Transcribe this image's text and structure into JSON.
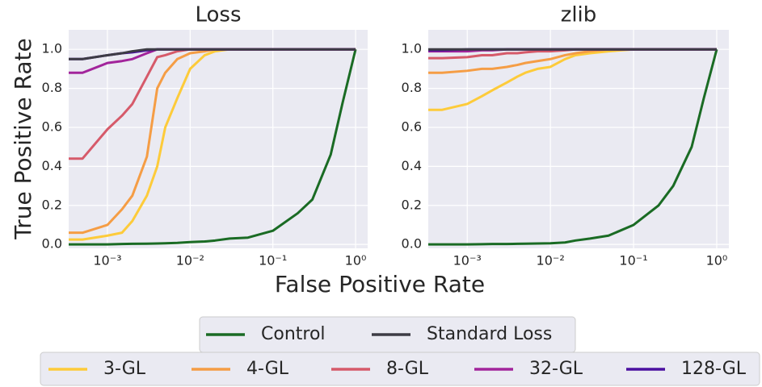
{
  "xlabel": "False Positive Rate",
  "ylabel": "True Positive Rate",
  "chart_data": [
    {
      "type": "line",
      "title": "Loss",
      "xscale": "log",
      "grid": true,
      "xlim": [
        0.00034,
        1.4
      ],
      "ylim": [
        -0.02,
        1.1
      ],
      "xticks": [
        {
          "value": 0.001,
          "label": "10⁻³"
        },
        {
          "value": 0.01,
          "label": "10⁻²"
        },
        {
          "value": 0.1,
          "label": "10⁻¹"
        },
        {
          "value": 1,
          "label": "10⁰"
        }
      ],
      "yticks": [
        {
          "value": 0,
          "label": "0.0"
        },
        {
          "value": 0.2,
          "label": "0.2"
        },
        {
          "value": 0.4,
          "label": "0.4"
        },
        {
          "value": 0.6,
          "label": "0.6"
        },
        {
          "value": 0.8,
          "label": "0.8"
        },
        {
          "value": 1,
          "label": "1.0"
        }
      ],
      "x": [
        0.00034,
        0.0005,
        0.001,
        0.0015,
        0.002,
        0.003,
        0.004,
        0.005,
        0.007,
        0.01,
        0.015,
        0.02,
        0.03,
        0.05,
        0.1,
        0.2,
        0.3,
        0.5,
        0.7,
        1.0
      ],
      "series": [
        {
          "name": "Control",
          "color": "#1a6b24",
          "values": [
            0,
            0,
            0,
            0.002,
            0.003,
            0.004,
            0.005,
            0.006,
            0.008,
            0.012,
            0.015,
            0.02,
            0.03,
            0.035,
            0.07,
            0.16,
            0.23,
            0.46,
            0.73,
            1.0
          ]
        },
        {
          "name": "Standard Loss",
          "color": "#3d3c45",
          "values": [
            0.95,
            0.95,
            0.97,
            0.98,
            0.99,
            1.0,
            1.0,
            1.0,
            1.0,
            1.0,
            1.0,
            1.0,
            1.0,
            1.0,
            1.0,
            1.0,
            1.0,
            1.0,
            1.0,
            1.0
          ]
        },
        {
          "name": "3-GL",
          "color": "#fdcb3a",
          "values": [
            0.025,
            0.025,
            0.045,
            0.06,
            0.12,
            0.25,
            0.4,
            0.6,
            0.75,
            0.9,
            0.97,
            0.99,
            1.0,
            1.0,
            1.0,
            1.0,
            1.0,
            1.0,
            1.0,
            1.0
          ]
        },
        {
          "name": "4-GL",
          "color": "#f59d45",
          "values": [
            0.06,
            0.06,
            0.1,
            0.18,
            0.25,
            0.45,
            0.8,
            0.88,
            0.95,
            0.98,
            0.99,
            1.0,
            1.0,
            1.0,
            1.0,
            1.0,
            1.0,
            1.0,
            1.0,
            1.0
          ]
        },
        {
          "name": "8-GL",
          "color": "#d65a6a",
          "values": [
            0.44,
            0.44,
            0.59,
            0.66,
            0.72,
            0.86,
            0.96,
            0.97,
            0.99,
            1.0,
            1.0,
            1.0,
            1.0,
            1.0,
            1.0,
            1.0,
            1.0,
            1.0,
            1.0,
            1.0
          ]
        },
        {
          "name": "32-GL",
          "color": "#a2249b",
          "values": [
            0.88,
            0.88,
            0.93,
            0.94,
            0.95,
            0.98,
            1.0,
            1.0,
            1.0,
            1.0,
            1.0,
            1.0,
            1.0,
            1.0,
            1.0,
            1.0,
            1.0,
            1.0,
            1.0,
            1.0
          ]
        },
        {
          "name": "128-GL",
          "color": "#4b10a0",
          "values": [
            0.95,
            0.95,
            0.97,
            0.98,
            0.985,
            0.995,
            1.0,
            1.0,
            1.0,
            1.0,
            1.0,
            1.0,
            1.0,
            1.0,
            1.0,
            1.0,
            1.0,
            1.0,
            1.0,
            1.0
          ]
        }
      ]
    },
    {
      "type": "line",
      "title": "zlib",
      "xscale": "log",
      "grid": true,
      "xlim": [
        0.00034,
        1.4
      ],
      "ylim": [
        -0.02,
        1.1
      ],
      "xticks": [
        {
          "value": 0.001,
          "label": "10⁻³"
        },
        {
          "value": 0.01,
          "label": "10⁻²"
        },
        {
          "value": 0.1,
          "label": "10⁻¹"
        },
        {
          "value": 1,
          "label": "10⁰"
        }
      ],
      "yticks": [
        {
          "value": 0,
          "label": "0.0"
        },
        {
          "value": 0.2,
          "label": "0.2"
        },
        {
          "value": 0.4,
          "label": "0.4"
        },
        {
          "value": 0.6,
          "label": "0.6"
        },
        {
          "value": 0.8,
          "label": "0.8"
        },
        {
          "value": 1,
          "label": "1.0"
        }
      ],
      "x": [
        0.00034,
        0.0005,
        0.001,
        0.0015,
        0.002,
        0.003,
        0.004,
        0.005,
        0.007,
        0.01,
        0.015,
        0.02,
        0.03,
        0.05,
        0.1,
        0.2,
        0.3,
        0.5,
        0.7,
        1.0
      ],
      "series": [
        {
          "name": "Control",
          "color": "#1a6b24",
          "values": [
            0,
            0,
            0,
            0.001,
            0.002,
            0.002,
            0.003,
            0.004,
            0.005,
            0.006,
            0.01,
            0.02,
            0.03,
            0.045,
            0.1,
            0.2,
            0.3,
            0.5,
            0.75,
            1.0
          ]
        },
        {
          "name": "Standard Loss",
          "color": "#3d3c45",
          "values": [
            1.0,
            1.0,
            1.0,
            1.0,
            1.0,
            1.0,
            1.0,
            1.0,
            1.0,
            1.0,
            1.0,
            1.0,
            1.0,
            1.0,
            1.0,
            1.0,
            1.0,
            1.0,
            1.0,
            1.0
          ]
        },
        {
          "name": "3-GL",
          "color": "#fdcb3a",
          "values": [
            0.69,
            0.69,
            0.72,
            0.76,
            0.79,
            0.83,
            0.86,
            0.88,
            0.9,
            0.91,
            0.95,
            0.97,
            0.98,
            0.99,
            1.0,
            1.0,
            1.0,
            1.0,
            1.0,
            1.0
          ]
        },
        {
          "name": "4-GL",
          "color": "#f59d45",
          "values": [
            0.88,
            0.88,
            0.89,
            0.9,
            0.9,
            0.91,
            0.92,
            0.93,
            0.94,
            0.95,
            0.97,
            0.98,
            0.99,
            1.0,
            1.0,
            1.0,
            1.0,
            1.0,
            1.0,
            1.0
          ]
        },
        {
          "name": "8-GL",
          "color": "#d65a6a",
          "values": [
            0.955,
            0.955,
            0.96,
            0.97,
            0.97,
            0.98,
            0.98,
            0.985,
            0.99,
            0.99,
            0.995,
            1.0,
            1.0,
            1.0,
            1.0,
            1.0,
            1.0,
            1.0,
            1.0,
            1.0
          ]
        },
        {
          "name": "32-GL",
          "color": "#a2249b",
          "values": [
            0.99,
            0.99,
            0.99,
            0.995,
            0.995,
            1.0,
            1.0,
            1.0,
            1.0,
            1.0,
            1.0,
            1.0,
            1.0,
            1.0,
            1.0,
            1.0,
            1.0,
            1.0,
            1.0,
            1.0
          ]
        },
        {
          "name": "128-GL",
          "color": "#4b10a0",
          "values": [
            0.995,
            0.995,
            1.0,
            1.0,
            1.0,
            1.0,
            1.0,
            1.0,
            1.0,
            1.0,
            1.0,
            1.0,
            1.0,
            1.0,
            1.0,
            1.0,
            1.0,
            1.0,
            1.0,
            1.0
          ]
        }
      ]
    }
  ]
}
